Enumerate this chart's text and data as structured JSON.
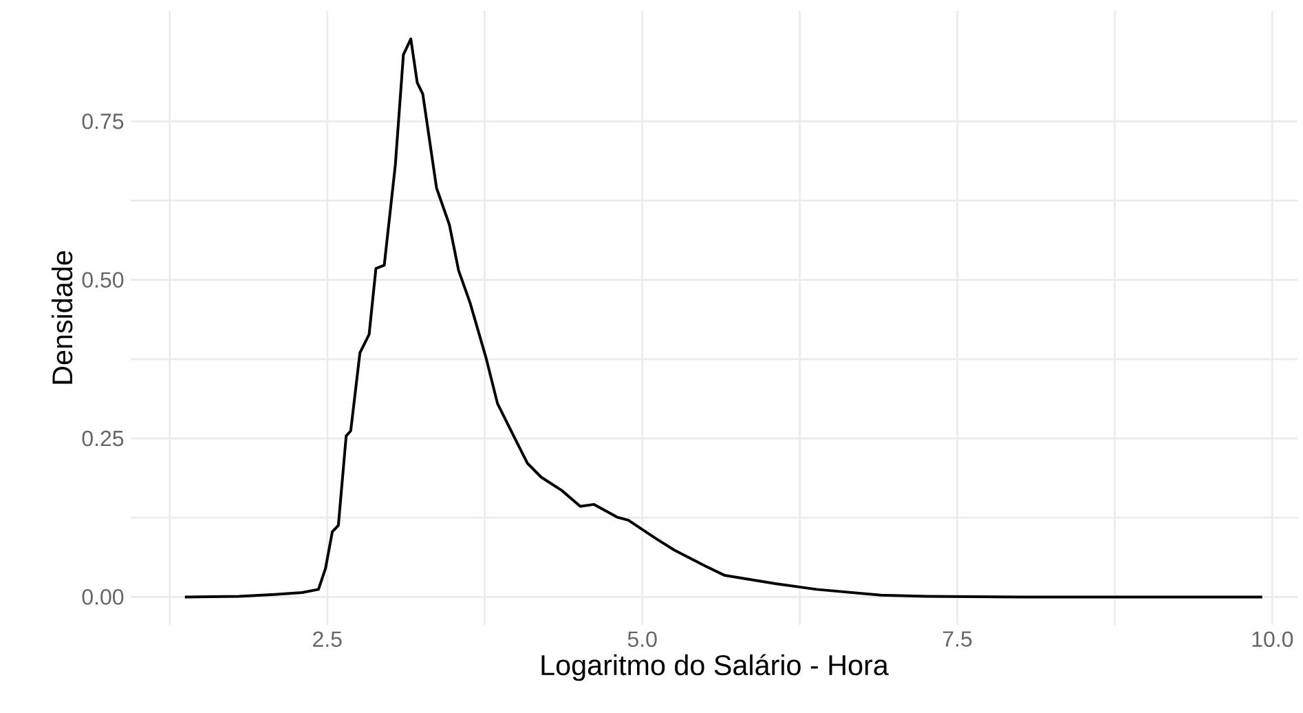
{
  "chart_data": {
    "type": "line",
    "xlabel": "Logaritmo do Salário - Hora",
    "ylabel": "Densidade",
    "color": "#000000",
    "grid": true,
    "marker": "none",
    "line_style": "solid",
    "xlim": [
      0.94,
      10.2
    ],
    "ylim": [
      -0.044,
      0.924
    ],
    "xticks": [
      {
        "value": 1.25,
        "label": null
      },
      {
        "value": 2.5,
        "label": "2.5"
      },
      {
        "value": 3.75,
        "label": null
      },
      {
        "value": 5,
        "label": "5.0"
      },
      {
        "value": 6.25,
        "label": null
      },
      {
        "value": 7.5,
        "label": "7.5"
      },
      {
        "value": 8.75,
        "label": null
      },
      {
        "value": 10,
        "label": "10.0"
      }
    ],
    "yticks": [
      {
        "value": 0,
        "label": "0.00"
      },
      {
        "value": 0.125,
        "label": null
      },
      {
        "value": 0.25,
        "label": "0.25"
      },
      {
        "value": 0.375,
        "label": null
      },
      {
        "value": 0.5,
        "label": "0.50"
      },
      {
        "value": 0.625,
        "label": null
      },
      {
        "value": 0.75,
        "label": "0.75"
      }
    ],
    "x": [
      1.37,
      1.8,
      2.085,
      2.3,
      2.43,
      2.486,
      2.54,
      2.588,
      2.65,
      2.686,
      2.759,
      2.832,
      2.886,
      2.952,
      3.04,
      3.104,
      3.163,
      3.214,
      3.258,
      3.367,
      3.469,
      3.542,
      3.633,
      3.76,
      3.851,
      3.979,
      4.088,
      4.197,
      4.361,
      4.508,
      4.617,
      4.799,
      4.89,
      5.109,
      5.254,
      5.509,
      5.655,
      6.055,
      6.383,
      6.893,
      7.257,
      8.0,
      9.0,
      9.92
    ],
    "values": [
      0,
      0.001,
      0.004,
      0.007,
      0.012,
      0.045,
      0.103,
      0.113,
      0.254,
      0.262,
      0.385,
      0.414,
      0.518,
      0.523,
      0.681,
      0.855,
      0.88,
      0.811,
      0.793,
      0.645,
      0.587,
      0.515,
      0.464,
      0.377,
      0.305,
      0.254,
      0.211,
      0.189,
      0.168,
      0.143,
      0.146,
      0.126,
      0.121,
      0.092,
      0.074,
      0.048,
      0.034,
      0.021,
      0.012,
      0.003,
      0.001,
      0,
      0,
      0
    ]
  }
}
